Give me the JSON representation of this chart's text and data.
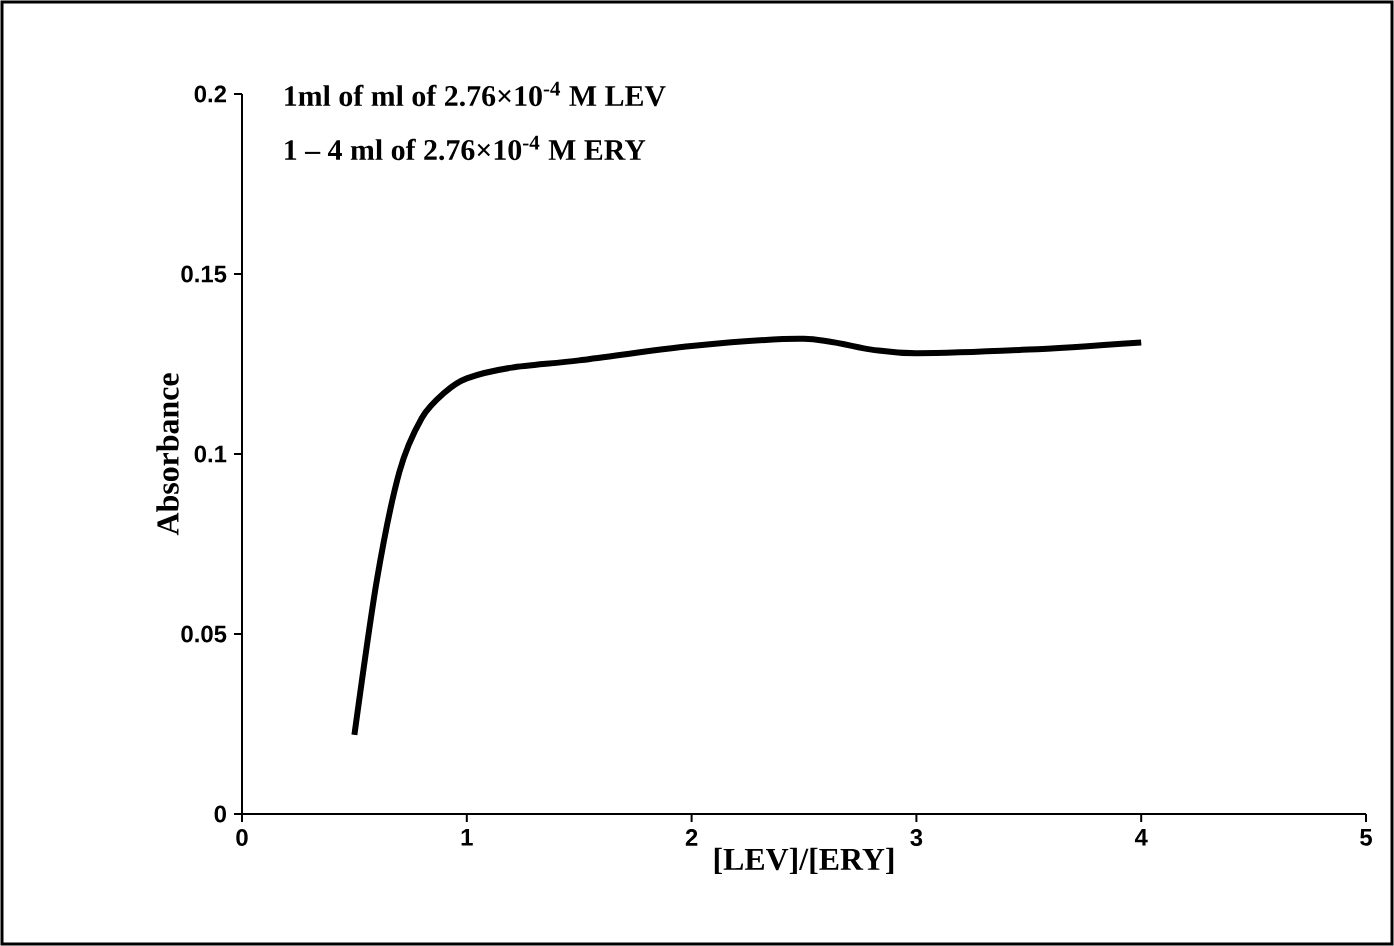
{
  "chart_data": {
    "type": "line",
    "xlabel": "[LEV]/[ERY]",
    "ylabel": "Absorbance",
    "annotations": [
      "1ml of  ml of 2.76×10$^{-4}$ M LEV",
      "1 – 4 ml  of 2.76×10$^{-4}$ M ERY"
    ],
    "x": [
      0.5,
      0.6,
      0.7,
      0.8,
      0.9,
      1.0,
      1.2,
      1.5,
      2.0,
      2.5,
      2.8,
      3.0,
      3.5,
      4.0
    ],
    "series": [
      {
        "color": "#000000",
        "values": [
          0.022,
          0.065,
          0.095,
          0.11,
          0.117,
          0.121,
          0.124,
          0.126,
          0.13,
          0.132,
          0.129,
          0.128,
          0.129,
          0.131
        ]
      }
    ],
    "xlim": [
      0,
      5
    ],
    "xticks": [
      0,
      1,
      2,
      3,
      4,
      5
    ],
    "ylim": [
      0,
      0.2
    ],
    "yticks": [
      0,
      0.05,
      0.1,
      0.15,
      0.2
    ],
    "marker": "none",
    "line_style": "solid"
  }
}
